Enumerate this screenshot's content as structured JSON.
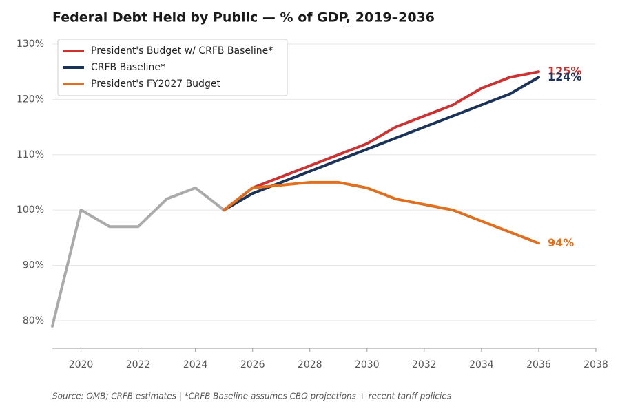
{
  "chart_data": {
    "type": "line",
    "title": "Federal Debt Held by Public — % of GDP, 2019–2036",
    "source": "Source: OMB; CRFB estimates  |  *CRFB Baseline assumes CBO projections + recent tariff policies",
    "x": [
      2019,
      2020,
      2021,
      2022,
      2023,
      2024,
      2025,
      2026,
      2027,
      2028,
      2029,
      2030,
      2031,
      2032,
      2033,
      2034,
      2035,
      2036
    ],
    "series": [
      {
        "color": "#aaaaaa",
        "values": [
          79,
          100,
          97,
          97,
          102,
          104,
          100,
          null,
          null,
          null,
          null,
          null,
          null,
          null,
          null,
          null,
          null,
          null
        ]
      },
      {
        "name": "President's Budget w/ CRFB Baseline*",
        "color": "#cc3333",
        "values": [
          null,
          null,
          null,
          null,
          null,
          null,
          100,
          104,
          106,
          108,
          110,
          112,
          115,
          117,
          119,
          122,
          124,
          125
        ],
        "value_labels": [
          null,
          null,
          null,
          null,
          null,
          null,
          null,
          null,
          null,
          null,
          null,
          null,
          null,
          null,
          null,
          null,
          null,
          "125%"
        ]
      },
      {
        "name": "CRFB Baseline*",
        "color": "#1b3358",
        "values": [
          null,
          null,
          null,
          null,
          null,
          null,
          100,
          103,
          105,
          107,
          109,
          111,
          113,
          115,
          117,
          119,
          121,
          124
        ],
        "value_labels": [
          null,
          null,
          null,
          null,
          null,
          null,
          null,
          null,
          null,
          null,
          null,
          null,
          null,
          null,
          null,
          null,
          null,
          "124%"
        ]
      },
      {
        "name": "President's FY2027 Budget",
        "color": "#e07020",
        "values": [
          null,
          null,
          null,
          null,
          null,
          null,
          100,
          104,
          104.5,
          105,
          105,
          104,
          102,
          101,
          100,
          98,
          96,
          94
        ],
        "value_labels": [
          null,
          null,
          null,
          null,
          null,
          null,
          null,
          null,
          null,
          null,
          null,
          null,
          null,
          null,
          null,
          null,
          null,
          "94%"
        ]
      }
    ],
    "xlim": [
      2019,
      2038
    ],
    "xticks": [
      2020,
      2022,
      2024,
      2026,
      2028,
      2030,
      2032,
      2034,
      2036,
      2038
    ],
    "ylim": [
      75,
      131
    ],
    "yticks": [
      {
        "value": 80,
        "label": "80%"
      },
      {
        "value": 90,
        "label": "90%"
      },
      {
        "value": 100,
        "label": "100%"
      },
      {
        "value": 110,
        "label": "110%"
      },
      {
        "value": 120,
        "label": "120%"
      },
      {
        "value": 130,
        "label": "130%"
      }
    ],
    "grid": true,
    "legend": "upper-left"
  }
}
